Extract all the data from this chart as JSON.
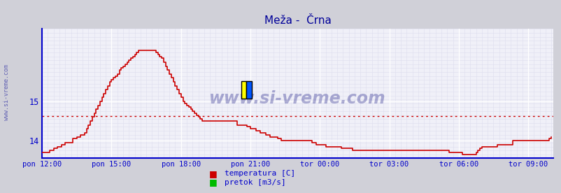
{
  "title": "Meža -  Črna",
  "title_color": "#000099",
  "title_fontsize": 11,
  "bg_color": "#d0d0d8",
  "plot_bg_color": "#f0f0f8",
  "grid_color_major": "#ffffff",
  "grid_color_minor": "#ddddee",
  "axis_color": "#0000cc",
  "tick_label_color": "#0000cc",
  "watermark": "www.si-vreme.com",
  "watermark_color": "#000077",
  "watermark_alpha": 0.3,
  "legend_labels": [
    "temperatura [C]",
    "pretok [m3/s]"
  ],
  "legend_colors": [
    "#cc0000",
    "#00bb00"
  ],
  "x_tick_labels": [
    "pon 12:00",
    "pon 15:00",
    "pon 18:00",
    "pon 21:00",
    "tor 00:00",
    "tor 03:00",
    "tor 06:00",
    "tor 09:00"
  ],
  "x_tick_positions": [
    0,
    36,
    72,
    108,
    144,
    180,
    216,
    252
  ],
  "y_ticks": [
    14,
    15
  ],
  "ylim": [
    13.55,
    16.85
  ],
  "xlim": [
    0,
    265
  ],
  "mean_line_y": 14.62,
  "mean_line_color": "#cc0000",
  "line_color": "#cc0000",
  "line_width": 1.2,
  "y_tick_labels": [
    "14",
    "15"
  ],
  "temperatura_data": [
    13.7,
    13.7,
    13.7,
    13.7,
    13.75,
    13.75,
    13.8,
    13.8,
    13.85,
    13.85,
    13.9,
    13.9,
    13.95,
    13.95,
    13.95,
    13.95,
    14.05,
    14.05,
    14.1,
    14.1,
    14.15,
    14.15,
    14.2,
    14.3,
    14.4,
    14.5,
    14.6,
    14.7,
    14.8,
    14.9,
    15.0,
    15.1,
    15.2,
    15.3,
    15.4,
    15.5,
    15.55,
    15.6,
    15.65,
    15.7,
    15.8,
    15.85,
    15.9,
    15.95,
    16.0,
    16.05,
    16.1,
    16.15,
    16.2,
    16.25,
    16.3,
    16.3,
    16.3,
    16.3,
    16.3,
    16.3,
    16.3,
    16.3,
    16.3,
    16.25,
    16.2,
    16.15,
    16.1,
    16.0,
    15.9,
    15.8,
    15.7,
    15.6,
    15.5,
    15.4,
    15.3,
    15.2,
    15.1,
    15.0,
    14.95,
    14.9,
    14.85,
    14.8,
    14.75,
    14.7,
    14.65,
    14.6,
    14.55,
    14.5,
    14.5,
    14.5,
    14.5,
    14.5,
    14.5,
    14.5,
    14.5,
    14.5,
    14.5,
    14.5,
    14.5,
    14.5,
    14.5,
    14.5,
    14.5,
    14.5,
    14.5,
    14.4,
    14.4,
    14.4,
    14.4,
    14.4,
    14.35,
    14.35,
    14.3,
    14.3,
    14.3,
    14.25,
    14.25,
    14.2,
    14.2,
    14.2,
    14.15,
    14.15,
    14.1,
    14.1,
    14.1,
    14.1,
    14.05,
    14.05,
    14.0,
    14.0,
    14.0,
    14.0,
    14.0,
    14.0,
    14.0,
    14.0,
    14.0,
    14.0,
    14.0,
    14.0,
    14.0,
    14.0,
    14.0,
    14.0,
    13.95,
    13.95,
    13.9,
    13.9,
    13.9,
    13.9,
    13.9,
    13.85,
    13.85,
    13.85,
    13.85,
    13.85,
    13.85,
    13.85,
    13.85,
    13.8,
    13.8,
    13.8,
    13.8,
    13.8,
    13.8,
    13.75,
    13.75,
    13.75,
    13.75,
    13.75,
    13.75,
    13.75,
    13.75,
    13.75,
    13.75,
    13.75,
    13.75,
    13.75,
    13.75,
    13.75,
    13.75,
    13.75,
    13.75,
    13.75,
    13.75,
    13.75,
    13.75,
    13.75,
    13.75,
    13.75,
    13.75,
    13.75,
    13.75,
    13.75,
    13.75,
    13.75,
    13.75,
    13.75,
    13.75,
    13.75,
    13.75,
    13.75,
    13.75,
    13.75,
    13.75,
    13.75,
    13.75,
    13.75,
    13.75,
    13.75,
    13.75,
    13.75,
    13.75,
    13.75,
    13.75,
    13.7,
    13.7,
    13.7,
    13.7,
    13.7,
    13.7,
    13.7,
    13.65,
    13.65,
    13.65,
    13.65,
    13.65,
    13.65,
    13.65,
    13.7,
    13.75,
    13.8,
    13.85,
    13.85,
    13.85,
    13.85,
    13.85,
    13.85,
    13.85,
    13.85,
    13.9,
    13.9,
    13.9,
    13.9,
    13.9,
    13.9,
    13.9,
    13.9,
    14.0,
    14.0,
    14.0,
    14.0,
    14.0,
    14.0,
    14.0,
    14.0,
    14.0,
    14.0,
    14.0,
    14.0,
    14.0,
    14.0,
    14.0,
    14.0,
    14.0,
    14.0,
    14.0,
    14.05,
    14.1
  ]
}
